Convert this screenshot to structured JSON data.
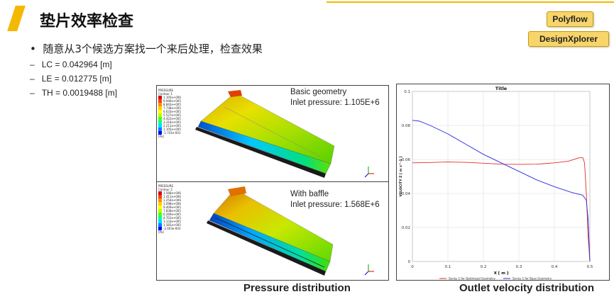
{
  "slide": {
    "title": "垫片效率检查",
    "tags": [
      "Polyflow",
      "DesignXplorer"
    ],
    "bullet": "随意从3个候选方案找一个来后处理，检查效果",
    "params": [
      "LC = 0.042964 [m]",
      "LE = 0.012775 [m]",
      "TH = 0.0019488 [m]"
    ]
  },
  "pressure_panel": {
    "caption": "Pressure distribution",
    "top": {
      "legend_title": "PRESSURE",
      "legend_sub": "Contour 1",
      "legend_values": [
        "1.105e+006",
        "9.946e+005",
        "8.843e+005",
        "7.738e+005",
        "6.633e+005",
        "5.527e+005",
        "4.422e+005",
        "3.316e+005",
        "2.211e+005",
        "1.105e+005",
        "-1.741e-001"
      ],
      "unit": "[Pa]",
      "label1": "Basic geometry",
      "label2": "Inlet pressure: 1.105E+6"
    },
    "bottom": {
      "legend_title": "PRESSURE",
      "legend_sub": "Contour 2",
      "legend_values": [
        "1.568e+006",
        "1.411e+006",
        "1.254e+006",
        "1.098e+006",
        "9.409e+005",
        "7.838e+005",
        "6.269e+005",
        "4.701e+005",
        "3.133e+005",
        "1.565e+005",
        "-2.403e-003"
      ],
      "unit": "[Pa]",
      "label1": "With baffle",
      "label2": "Inlet pressure: 1.568E+6"
    },
    "legend_colors": [
      "#d6001c",
      "#ff4000",
      "#ff8c00",
      "#ffcc00",
      "#ffff00",
      "#b4ff00",
      "#4cff00",
      "#00ff9c",
      "#00dcff",
      "#0080ff",
      "#0000ff"
    ]
  },
  "velocity_panel": {
    "caption": "Outlet velocity distribution"
  },
  "chart_data": {
    "type": "line",
    "title": "Title",
    "xlabel": "X [ m ]",
    "ylabel": "VELOCITY Z [ m s^-1 ]",
    "xlim": [
      0,
      0.5
    ],
    "ylim": [
      0,
      0.1
    ],
    "xticks": [
      "0",
      "0.1",
      "0.2",
      "0.3",
      "0.4",
      "0.5"
    ],
    "yticks": [
      "0",
      "0.02",
      "0.04",
      "0.06",
      "0.08",
      "0.1"
    ],
    "grid": true,
    "legend_placement": "bottom",
    "series": [
      {
        "name": "Series 1 for Optimized Geometry",
        "color": "#e0302a",
        "x": [
          0,
          0.05,
          0.1,
          0.15,
          0.2,
          0.25,
          0.3,
          0.35,
          0.4,
          0.44,
          0.47,
          0.48,
          0.485,
          0.49,
          0.495,
          0.5
        ],
        "y": [
          0.058,
          0.0582,
          0.0585,
          0.0583,
          0.0578,
          0.0572,
          0.0571,
          0.0572,
          0.058,
          0.059,
          0.061,
          0.061,
          0.058,
          0.04,
          0.015,
          0.0
        ]
      },
      {
        "name": "Series 1 for Base Geometry",
        "color": "#2a2ae0",
        "x": [
          0,
          0.02,
          0.05,
          0.1,
          0.15,
          0.2,
          0.25,
          0.3,
          0.35,
          0.4,
          0.45,
          0.48,
          0.49,
          0.495,
          0.5
        ],
        "y": [
          0.083,
          0.0825,
          0.08,
          0.075,
          0.069,
          0.063,
          0.058,
          0.053,
          0.048,
          0.044,
          0.0405,
          0.039,
          0.036,
          0.025,
          0.0
        ]
      }
    ]
  }
}
